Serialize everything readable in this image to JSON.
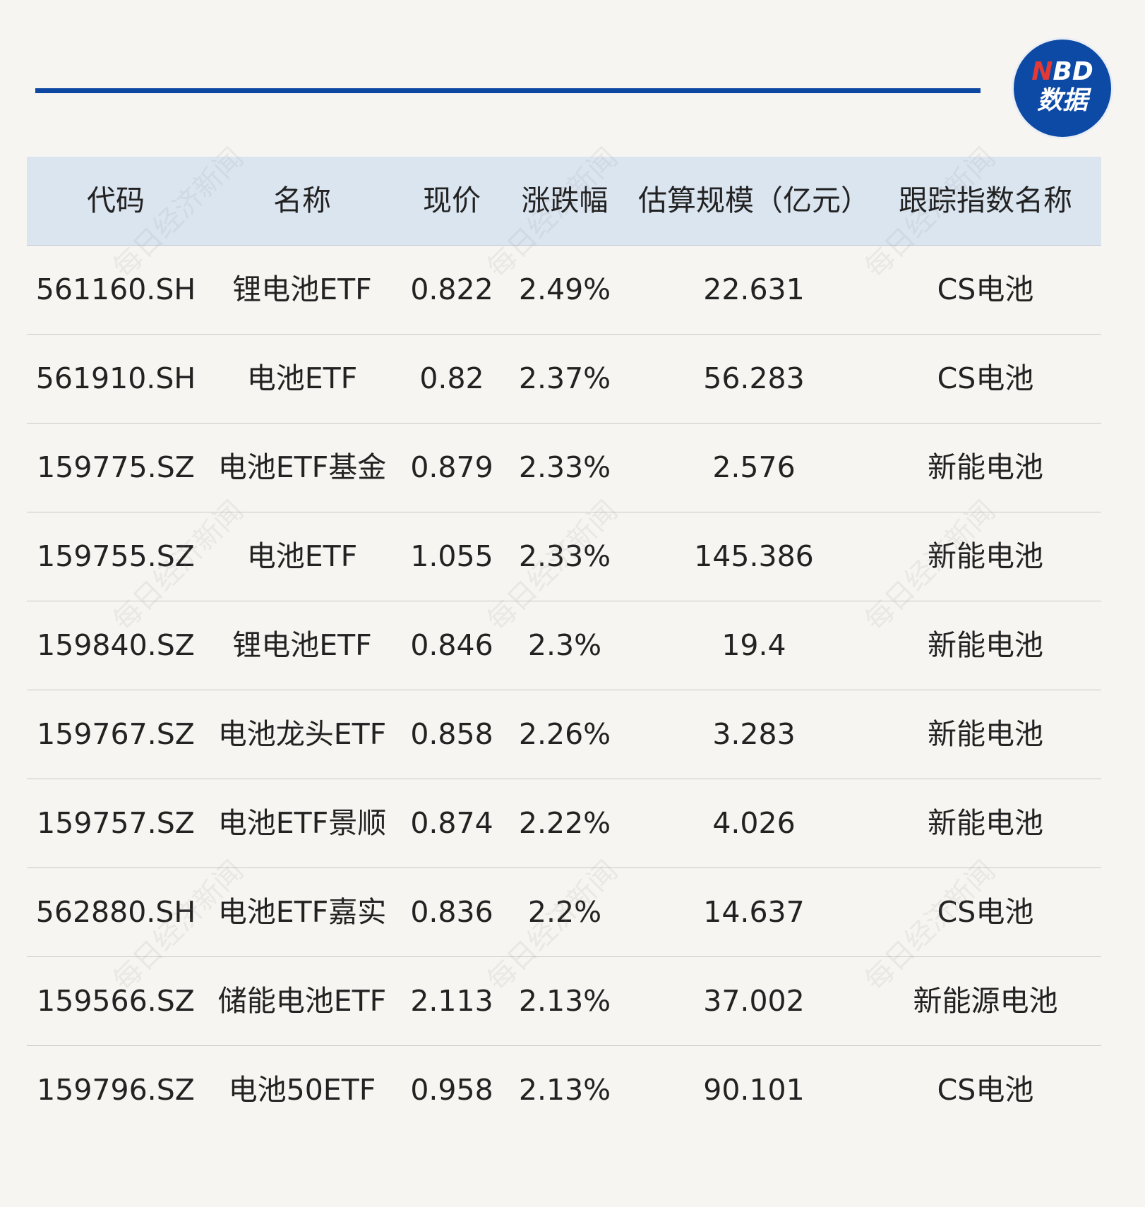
{
  "logo": {
    "n": "N",
    "bd": "BD",
    "label": "数据"
  },
  "watermark": "每日经济新闻",
  "table": {
    "header": [
      "代码",
      "名称",
      "现价",
      "涨跌幅",
      "估算规模（亿元）",
      "跟踪指数名称"
    ],
    "rows": [
      [
        "561160.SH",
        "锂电池ETF",
        "0.822",
        "2.49%",
        "22.631",
        "CS电池"
      ],
      [
        "561910.SH",
        "电池ETF",
        "0.82",
        "2.37%",
        "56.283",
        "CS电池"
      ],
      [
        "159775.SZ",
        "电池ETF基金",
        "0.879",
        "2.33%",
        "2.576",
        "新能电池"
      ],
      [
        "159755.SZ",
        "电池ETF",
        "1.055",
        "2.33%",
        "145.386",
        "新能电池"
      ],
      [
        "159840.SZ",
        "锂电池ETF",
        "0.846",
        "2.3%",
        "19.4",
        "新能电池"
      ],
      [
        "159767.SZ",
        "电池龙头ETF",
        "0.858",
        "2.26%",
        "3.283",
        "新能电池"
      ],
      [
        "159757.SZ",
        "电池ETF景顺",
        "0.874",
        "2.22%",
        "4.026",
        "新能电池"
      ],
      [
        "562880.SH",
        "电池ETF嘉实",
        "0.836",
        "2.2%",
        "14.637",
        "CS电池"
      ],
      [
        "159566.SZ",
        "储能电池ETF",
        "2.113",
        "2.13%",
        "37.002",
        "新能源电池"
      ],
      [
        "159796.SZ",
        "电池50ETF",
        "0.958",
        "2.13%",
        "90.101",
        "CS电池"
      ]
    ]
  }
}
